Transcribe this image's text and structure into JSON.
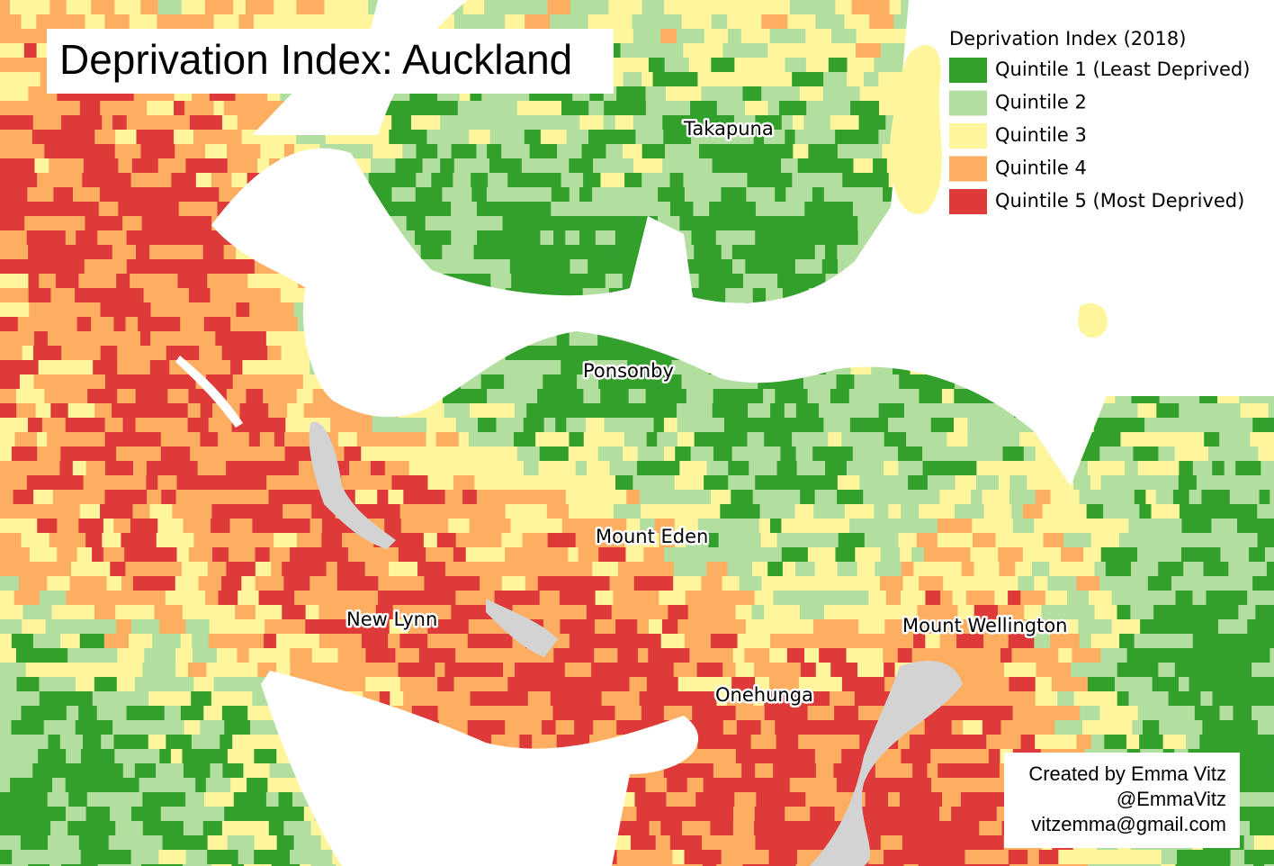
{
  "title": "Deprivation Index: Auckland",
  "legend": {
    "title": "Deprivation Index (2018)",
    "items": [
      {
        "label": "Quintile 1 (Least Deprived)",
        "color": "#33a02c"
      },
      {
        "label": "Quintile 2",
        "color": "#b2dfa0"
      },
      {
        "label": "Quintile 3",
        "color": "#fff59d"
      },
      {
        "label": "Quintile 4",
        "color": "#fdae61"
      },
      {
        "label": "Quintile 5 (Most Deprived)",
        "color": "#de3a3a"
      }
    ]
  },
  "places": [
    "Takapuna",
    "Ponsonby",
    "Mount Eden",
    "New Lynn",
    "Mount Wellington",
    "Onehunga"
  ],
  "credits": [
    "Created by Emma Vitz",
    "@EmmaVitz",
    "vitzemma@gmail.com"
  ]
}
